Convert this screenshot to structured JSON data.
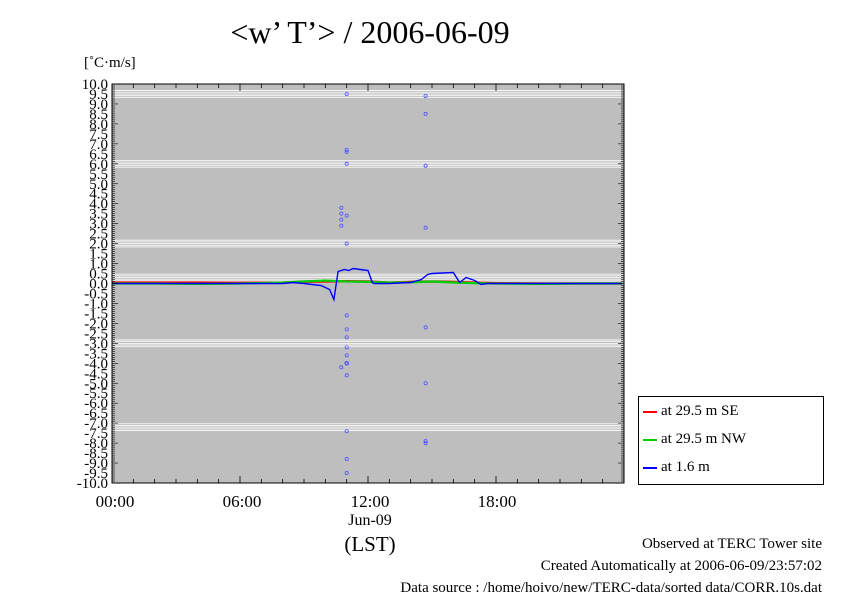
{
  "chart_data": {
    "type": "line",
    "title": "<w’ T’> / 2006-06-09",
    "ylabel_unit": "[˚C·m/s]",
    "ylim": [
      -10.0,
      10.0
    ],
    "y_top_tick": "10.0",
    "y_bottom_tick": "-10.0",
    "y_zero_tick": "0.0",
    "xlim": [
      0,
      24
    ],
    "x_ticks": [
      "00:00",
      "06:00",
      "12:00",
      "18:00"
    ],
    "x_date_label": "Jun-09",
    "xlabel": "(LST)",
    "grid": true,
    "legend_placement": "bottom-right, outside plot",
    "series": [
      {
        "name": "at 29.5 m SE",
        "color": "#ff0000",
        "x": [
          0,
          2,
          4,
          6,
          8,
          9,
          10,
          11,
          12,
          13,
          14,
          15,
          16,
          17,
          18,
          20,
          22,
          23.9
        ],
        "values": [
          0.05,
          0.05,
          0.05,
          0.04,
          0.05,
          0.08,
          0.1,
          0.12,
          0.1,
          0.05,
          0.08,
          0.1,
          0.08,
          0.05,
          0.02,
          0.0,
          0.0,
          0.0
        ]
      },
      {
        "name": "at 29.5 m NW",
        "color": "#00d000",
        "x": [
          0,
          2,
          4,
          6,
          8,
          9,
          10,
          11,
          12,
          13,
          14,
          15,
          16,
          17,
          18,
          20,
          22,
          23.9
        ],
        "values": [
          0.0,
          0.0,
          -0.02,
          0.0,
          0.05,
          0.1,
          0.15,
          0.1,
          0.08,
          0.05,
          0.06,
          0.1,
          0.05,
          0.02,
          0.0,
          -0.02,
          0.0,
          0.0
        ]
      },
      {
        "name": "at 1.6 m",
        "color": "#0000ff",
        "x": [
          0,
          4,
          8,
          8.5,
          9,
          9.8,
          10.2,
          10.4,
          10.6,
          10.9,
          11.1,
          11.3,
          12.0,
          12.2,
          12.3,
          13,
          14,
          14.5,
          14.8,
          15.0,
          16.0,
          16.3,
          16.6,
          17.0,
          17.3,
          17.6,
          18,
          20,
          22,
          23.9
        ],
        "values": [
          0.0,
          0.0,
          0.0,
          0.05,
          0.0,
          -0.1,
          -0.3,
          -0.8,
          0.6,
          0.7,
          0.65,
          0.75,
          0.65,
          0.05,
          0.0,
          0.0,
          0.05,
          0.2,
          0.45,
          0.5,
          0.55,
          0.05,
          0.3,
          0.15,
          -0.05,
          0.0,
          0.0,
          0.0,
          0.0,
          0.0
        ]
      }
    ],
    "outliers": {
      "name": "at 1.6 m",
      "color": "#5555ff",
      "x": [
        10.75,
        10.75,
        10.75,
        10.75,
        10.75,
        11.0,
        11.0,
        11.0,
        11.0,
        11.0,
        11.0,
        11.0,
        11.0,
        11.0,
        11.0,
        11.0,
        11.0,
        11.0,
        11.0,
        11.0,
        11.0,
        11.0,
        11.0,
        11.0,
        11.0,
        11.0,
        11.0,
        11.0,
        11.0,
        11.0,
        14.7,
        14.7,
        14.7,
        14.7,
        14.7,
        14.7,
        14.7,
        14.7
      ],
      "values": [
        3.8,
        3.5,
        3.2,
        2.9,
        -4.2,
        9.5,
        6.7,
        6.6,
        6.0,
        3.4,
        2.0,
        -1.6,
        -2.3,
        -2.7,
        -3.2,
        -3.6,
        -4.6,
        -7.4,
        -8.8,
        -9.5,
        -4.0,
        -4.0,
        -4.0,
        -4.0,
        -4.0,
        -4.0,
        -4.0,
        -4.0,
        -4.0,
        -4.0,
        9.4,
        8.5,
        5.9,
        2.8,
        -2.2,
        -5.0,
        -7.9,
        -8.0
      ],
      "note": "scattered out-of-range-ish flux values shown as small open circles"
    }
  },
  "legend": {
    "items": [
      {
        "label": "at 29.5 m SE",
        "color": "#ff0000"
      },
      {
        "label": "at 29.5 m NW",
        "color": "#00d000"
      },
      {
        "label": "at 1.6 m",
        "color": "#0000ff"
      }
    ]
  },
  "footer": {
    "line1": "Observed at TERC Tower site",
    "line2": "Created Automatically at 2006-06-09/23:57:02",
    "line3": "Data source : /home/hoivo/new/TERC-data/sorted  data/CORR.10s.dat"
  },
  "colors": {
    "plot_background": "#bebebe",
    "grid_line": "#ffffff"
  }
}
